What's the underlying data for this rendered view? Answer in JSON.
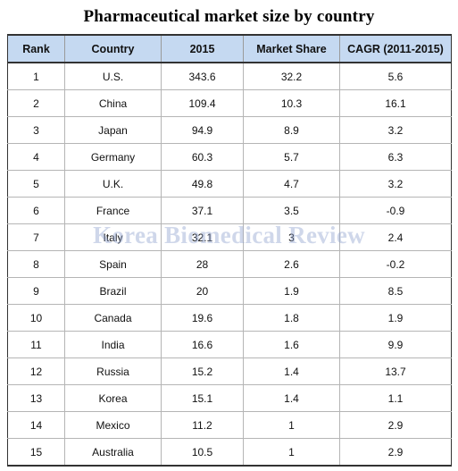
{
  "title": "Pharmaceutical market size by country",
  "watermark": "Korea Biomedical Review",
  "colors": {
    "header_background": "#c5d9f1",
    "watermark": "#8ca0cd"
  },
  "table": {
    "headers": [
      "Rank",
      "Country",
      "2015",
      "Market Share",
      "CAGR (2011-2015)"
    ],
    "rows": [
      [
        "1",
        "U.S.",
        "343.6",
        "32.2",
        "5.6"
      ],
      [
        "2",
        "China",
        "109.4",
        "10.3",
        "16.1"
      ],
      [
        "3",
        "Japan",
        "94.9",
        "8.9",
        "3.2"
      ],
      [
        "4",
        "Germany",
        "60.3",
        "5.7",
        "6.3"
      ],
      [
        "5",
        "U.K.",
        "49.8",
        "4.7",
        "3.2"
      ],
      [
        "6",
        "France",
        "37.1",
        "3.5",
        "-0.9"
      ],
      [
        "7",
        "Italy",
        "32.1",
        "3",
        "2.4"
      ],
      [
        "8",
        "Spain",
        "28",
        "2.6",
        "-0.2"
      ],
      [
        "9",
        "Brazil",
        "20",
        "1.9",
        "8.5"
      ],
      [
        "10",
        "Canada",
        "19.6",
        "1.8",
        "1.9"
      ],
      [
        "11",
        "India",
        "16.6",
        "1.6",
        "9.9"
      ],
      [
        "12",
        "Russia",
        "15.2",
        "1.4",
        "13.7"
      ],
      [
        "13",
        "Korea",
        "15.1",
        "1.4",
        "1.1"
      ],
      [
        "14",
        "Mexico",
        "11.2",
        "1",
        "2.9"
      ],
      [
        "15",
        "Australia",
        "10.5",
        "1",
        "2.9"
      ]
    ]
  }
}
